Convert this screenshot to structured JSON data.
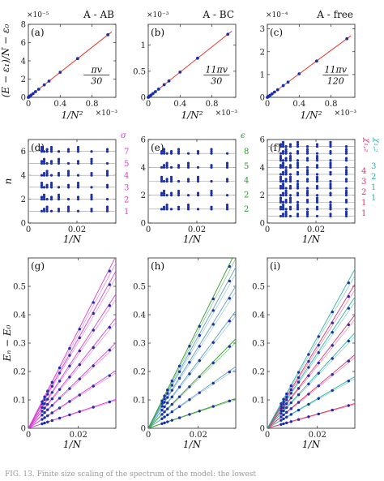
{
  "caption": "FIG. 13. Finite size scaling of the spectrum of the model: the lowest",
  "chart_data": [
    {
      "id": "a",
      "panel_label": "(a)",
      "title": "A - AB",
      "type": "line",
      "xlabel": "1/N²",
      "ylabel": "(E − ε₁)/N − ε₀",
      "x_exponent": "×10⁻³",
      "y_exponent": "×10⁻⁵",
      "xlim": [
        0,
        1.1
      ],
      "ylim": [
        0,
        8
      ],
      "xticks": [
        0,
        0.4,
        0.8
      ],
      "yticks": [
        0,
        2,
        4,
        6,
        8
      ],
      "annotation": "πv / 30",
      "fit": {
        "x": [
          0,
          1.05
        ],
        "y": [
          0,
          7.2
        ],
        "color": "#e8362c"
      },
      "points": {
        "x": [
          0.0,
          0.005,
          0.01,
          0.02,
          0.035,
          0.06,
          0.09,
          0.13,
          0.2,
          0.26,
          0.4,
          0.62,
          1.0
        ],
        "y": [
          0.0,
          0.03,
          0.07,
          0.14,
          0.24,
          0.41,
          0.62,
          0.89,
          1.37,
          1.78,
          2.74,
          4.25,
          6.86
        ],
        "color": "#1a2fa8"
      }
    },
    {
      "id": "b",
      "panel_label": "(b)",
      "title": "A - BC",
      "type": "line",
      "xlabel": "1/N²",
      "ylabel": "",
      "x_exponent": "×10⁻³",
      "y_exponent": "×10⁻³",
      "xlim": [
        0,
        1.1
      ],
      "ylim": [
        0,
        1.4
      ],
      "xticks": [
        0,
        0.4,
        0.8
      ],
      "yticks": [
        0,
        0.5,
        1
      ],
      "annotation": "11πv / 30",
      "fit": {
        "x": [
          0,
          1.05
        ],
        "y": [
          0,
          1.27
        ],
        "color": "#e8362c"
      },
      "points": {
        "x": [
          0.0,
          0.005,
          0.01,
          0.02,
          0.035,
          0.06,
          0.09,
          0.13,
          0.2,
          0.26,
          0.4,
          0.62,
          1.0
        ],
        "y": [
          0.0,
          0.006,
          0.012,
          0.024,
          0.042,
          0.073,
          0.109,
          0.157,
          0.242,
          0.314,
          0.484,
          0.75,
          1.21
        ],
        "color": "#1a2fa8"
      }
    },
    {
      "id": "c",
      "panel_label": "(c)",
      "title": "A - free",
      "type": "line",
      "xlabel": "1/N²",
      "ylabel": "",
      "x_exponent": "×10⁻³",
      "y_exponent": "×10⁻⁴",
      "xlim": [
        0,
        1.1
      ],
      "ylim": [
        0,
        3.2
      ],
      "xticks": [
        0,
        0.4,
        0.8
      ],
      "yticks": [
        0,
        1,
        2,
        3
      ],
      "annotation": "11πv / 120",
      "fit": {
        "x": [
          0,
          1.05
        ],
        "y": [
          0,
          2.7
        ],
        "color": "#e8362c"
      },
      "points": {
        "x": [
          0.0,
          0.005,
          0.01,
          0.02,
          0.035,
          0.06,
          0.09,
          0.13,
          0.2,
          0.26,
          0.4,
          0.62,
          1.0
        ],
        "y": [
          0.0,
          0.013,
          0.026,
          0.051,
          0.09,
          0.154,
          0.231,
          0.334,
          0.514,
          0.668,
          1.03,
          1.59,
          2.57
        ],
        "color": "#1a2fa8"
      }
    },
    {
      "id": "d",
      "panel_label": "(d)",
      "type": "scatter",
      "xlabel": "1/N",
      "ylabel": "n",
      "xlim": [
        0,
        0.036
      ],
      "ylim": [
        0,
        7
      ],
      "xticks": [
        0,
        0.02
      ],
      "yticks": [
        0,
        2,
        4,
        6
      ],
      "side_title": "σ",
      "side_labels": [
        "7",
        "5",
        "4",
        "3",
        "2",
        "1"
      ],
      "side_color": "#d93fd0",
      "levels": [
        1,
        2,
        3,
        4,
        5,
        6
      ],
      "x": [
        0.0055,
        0.0065,
        0.0077,
        0.0095,
        0.0125,
        0.0165,
        0.0205,
        0.026,
        0.0325
      ]
    },
    {
      "id": "e",
      "panel_label": "(e)",
      "type": "scatter",
      "xlabel": "1/N",
      "ylabel": "",
      "xlim": [
        0,
        0.036
      ],
      "ylim": [
        0,
        6
      ],
      "xticks": [
        0,
        0.02
      ],
      "yticks": [
        0,
        2,
        4,
        6
      ],
      "side_title": "ϵ",
      "side_labels": [
        "8",
        "5",
        "4",
        "2",
        "2"
      ],
      "side_color": "#2c9c2c",
      "levels": [
        1,
        2,
        3,
        4,
        5
      ],
      "x": [
        0.0055,
        0.0065,
        0.0077,
        0.0095,
        0.0125,
        0.0165,
        0.0205,
        0.026,
        0.0325
      ]
    },
    {
      "id": "f",
      "panel_label": "(f)",
      "type": "scatter",
      "xlabel": "1/N",
      "ylabel": "",
      "xlim": [
        0,
        0.036
      ],
      "ylim": [
        0,
        6
      ],
      "xticks": [
        0,
        0.02
      ],
      "yticks": [
        0,
        2,
        4,
        6
      ],
      "side_title_1": "χ₁,₂",
      "side_title_2": "χ₁,₂",
      "side_labels_1": [
        "4",
        "3",
        "2",
        "1",
        "1"
      ],
      "side_labels_2": [
        "3",
        "2",
        "1",
        "1"
      ],
      "side_color_1": "#e0306a",
      "side_color_2": "#2fb3a3",
      "levels": [
        0.5,
        1,
        1.5,
        2,
        2.5,
        3,
        3.5,
        4,
        4.5,
        5,
        5.5
      ],
      "x": [
        0.0055,
        0.0065,
        0.0077,
        0.0095,
        0.0125,
        0.0165,
        0.0205,
        0.026,
        0.0325
      ]
    },
    {
      "id": "g",
      "panel_label": "(g)",
      "type": "line",
      "xlabel": "1/N",
      "ylabel": "Eₙ − E₀",
      "xlim": [
        0,
        0.035
      ],
      "ylim": [
        0,
        0.6
      ],
      "xticks": [
        0,
        0.02
      ],
      "yticks": [
        0,
        0.1,
        0.2,
        0.3,
        0.4,
        0.5
      ],
      "line_color": "#d93fd0",
      "point_color": "#1a2fa8",
      "slopes": [
        2.9,
        5.8,
        8.6,
        11.1,
        13.5,
        15.8,
        17.3
      ],
      "x": [
        0.0055,
        0.0065,
        0.0077,
        0.0095,
        0.0125,
        0.0165,
        0.0205,
        0.026,
        0.0325
      ]
    },
    {
      "id": "h",
      "panel_label": "(h)",
      "type": "line",
      "xlabel": "1/N",
      "ylabel": "",
      "xlim": [
        0,
        0.035
      ],
      "ylim": [
        0,
        0.6
      ],
      "xticks": [
        0,
        0.02
      ],
      "yticks": [
        0,
        0.1,
        0.2,
        0.3,
        0.4,
        0.5
      ],
      "line_colors": [
        "#2c9c2c",
        "#5da0bf",
        "#2c9c2c",
        "#5da0bf",
        "#5da0bf",
        "#5da0bf",
        "#2c9c2c"
      ],
      "point_color": "#1a2fa8",
      "slopes": [
        3.0,
        6.2,
        9.0,
        11.8,
        14.3,
        16.2,
        17.8
      ],
      "x": [
        0.0055,
        0.0065,
        0.0077,
        0.0095,
        0.0125,
        0.0165,
        0.0205,
        0.026,
        0.0325
      ]
    },
    {
      "id": "i",
      "panel_label": "(i)",
      "type": "line",
      "xlabel": "1/N",
      "ylabel": "",
      "xlim": [
        0,
        0.035
      ],
      "ylim": [
        0,
        0.6
      ],
      "xticks": [
        0,
        0.02
      ],
      "yticks": [
        0,
        0.1,
        0.2,
        0.3,
        0.4,
        0.5
      ],
      "line_colors": [
        "#e0306a",
        "#2fb3a3",
        "#e0306a",
        "#2fb3a3",
        "#e0306a",
        "#2fb3a3",
        "#e0306a",
        "#2fb3a3"
      ],
      "point_color": "#1a2fa8",
      "slopes": [
        2.5,
        5.2,
        7.4,
        9.6,
        11.4,
        13.2,
        14.5,
        16.0
      ],
      "x": [
        0.0055,
        0.0065,
        0.0077,
        0.0095,
        0.0125,
        0.0165,
        0.0205,
        0.026,
        0.0325
      ]
    }
  ]
}
